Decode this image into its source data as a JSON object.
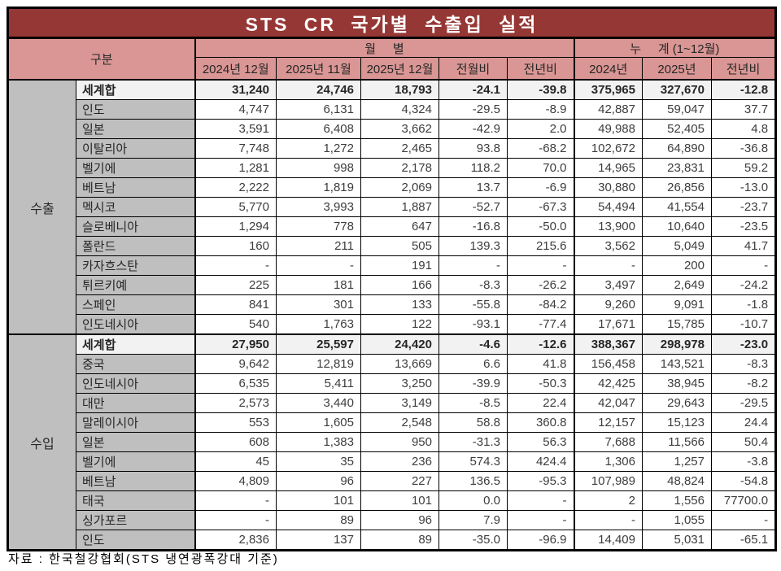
{
  "title": "STS CR 국가별 수출입 실적",
  "header": {
    "gubun": "구분",
    "monthly": "월     별",
    "cumulative": "누     계 (1~12월)",
    "columns": [
      "2024년 12월",
      "2025년 11월",
      "2025년 12월",
      "전월비",
      "전년비",
      "2024년",
      "2025년",
      "전년비"
    ]
  },
  "sections": [
    {
      "label": "수출",
      "rows": [
        {
          "name": "세계합",
          "total": true,
          "values": [
            "31,240",
            "24,746",
            "18,793",
            "-24.1",
            "-39.8",
            "375,965",
            "327,670",
            "-12.8"
          ]
        },
        {
          "name": "인도",
          "total": false,
          "values": [
            "4,747",
            "6,131",
            "4,324",
            "-29.5",
            "-8.9",
            "42,887",
            "59,047",
            "37.7"
          ]
        },
        {
          "name": "일본",
          "total": false,
          "values": [
            "3,591",
            "6,408",
            "3,662",
            "-42.9",
            "2.0",
            "49,988",
            "52,405",
            "4.8"
          ]
        },
        {
          "name": "이탈리아",
          "total": false,
          "values": [
            "7,748",
            "1,272",
            "2,465",
            "93.8",
            "-68.2",
            "102,672",
            "64,890",
            "-36.8"
          ]
        },
        {
          "name": "벨기에",
          "total": false,
          "values": [
            "1,281",
            "998",
            "2,178",
            "118.2",
            "70.0",
            "14,965",
            "23,831",
            "59.2"
          ]
        },
        {
          "name": "베트남",
          "total": false,
          "values": [
            "2,222",
            "1,819",
            "2,069",
            "13.7",
            "-6.9",
            "30,880",
            "26,856",
            "-13.0"
          ]
        },
        {
          "name": "멕시코",
          "total": false,
          "values": [
            "5,770",
            "3,993",
            "1,887",
            "-52.7",
            "-67.3",
            "54,494",
            "41,554",
            "-23.7"
          ]
        },
        {
          "name": "슬로베니아",
          "total": false,
          "values": [
            "1,294",
            "778",
            "647",
            "-16.8",
            "-50.0",
            "13,900",
            "10,640",
            "-23.5"
          ]
        },
        {
          "name": "폴란드",
          "total": false,
          "values": [
            "160",
            "211",
            "505",
            "139.3",
            "215.6",
            "3,562",
            "5,049",
            "41.7"
          ]
        },
        {
          "name": "카자흐스탄",
          "total": false,
          "values": [
            "-",
            "-",
            "191",
            "-",
            "-",
            "-",
            "200",
            "-"
          ]
        },
        {
          "name": "튀르키예",
          "total": false,
          "values": [
            "225",
            "181",
            "166",
            "-8.3",
            "-26.2",
            "3,497",
            "2,649",
            "-24.2"
          ]
        },
        {
          "name": "스페인",
          "total": false,
          "values": [
            "841",
            "301",
            "133",
            "-55.8",
            "-84.2",
            "9,260",
            "9,091",
            "-1.8"
          ]
        },
        {
          "name": "인도네시아",
          "total": false,
          "values": [
            "540",
            "1,763",
            "122",
            "-93.1",
            "-77.4",
            "17,671",
            "15,785",
            "-10.7"
          ]
        }
      ]
    },
    {
      "label": "수입",
      "rows": [
        {
          "name": "세계합",
          "total": true,
          "values": [
            "27,950",
            "25,597",
            "24,420",
            "-4.6",
            "-12.6",
            "388,367",
            "298,978",
            "-23.0"
          ]
        },
        {
          "name": "중국",
          "total": false,
          "values": [
            "9,642",
            "12,819",
            "13,669",
            "6.6",
            "41.8",
            "156,458",
            "143,521",
            "-8.3"
          ]
        },
        {
          "name": "인도네시아",
          "total": false,
          "values": [
            "6,535",
            "5,411",
            "3,250",
            "-39.9",
            "-50.3",
            "42,425",
            "38,945",
            "-8.2"
          ]
        },
        {
          "name": "대만",
          "total": false,
          "values": [
            "2,573",
            "3,440",
            "3,149",
            "-8.5",
            "22.4",
            "42,047",
            "29,643",
            "-29.5"
          ]
        },
        {
          "name": "말레이시아",
          "total": false,
          "values": [
            "553",
            "1,605",
            "2,548",
            "58.8",
            "360.8",
            "12,157",
            "15,123",
            "24.4"
          ]
        },
        {
          "name": "일본",
          "total": false,
          "values": [
            "608",
            "1,383",
            "950",
            "-31.3",
            "56.3",
            "7,688",
            "11,566",
            "50.4"
          ]
        },
        {
          "name": "벨기에",
          "total": false,
          "values": [
            "45",
            "35",
            "236",
            "574.3",
            "424.4",
            "1,306",
            "1,257",
            "-3.8"
          ]
        },
        {
          "name": "베트남",
          "total": false,
          "values": [
            "4,809",
            "96",
            "227",
            "136.5",
            "-95.3",
            "107,989",
            "48,824",
            "-54.8"
          ]
        },
        {
          "name": "태국",
          "total": false,
          "values": [
            "-",
            "101",
            "101",
            "0.0",
            "-",
            "2",
            "1,556",
            "77700.0"
          ]
        },
        {
          "name": "싱가포르",
          "total": false,
          "values": [
            "-",
            "89",
            "96",
            "7.9",
            "-",
            "-",
            "1,055",
            "-"
          ]
        },
        {
          "name": "인도",
          "total": false,
          "values": [
            "2,836",
            "137",
            "89",
            "-35.0",
            "-96.9",
            "14,409",
            "5,031",
            "-65.1"
          ]
        }
      ]
    }
  ],
  "footer": "자료 : 한국철강협회(STS 냉연광폭강대 기준)",
  "colors": {
    "title_bg": "#953735",
    "title_text": "#FFFFFF",
    "header_bg": "#D99694",
    "row_label_bg": "#BFBFBF",
    "total_row_bg": "#F2F2F2",
    "border": "#000000"
  }
}
